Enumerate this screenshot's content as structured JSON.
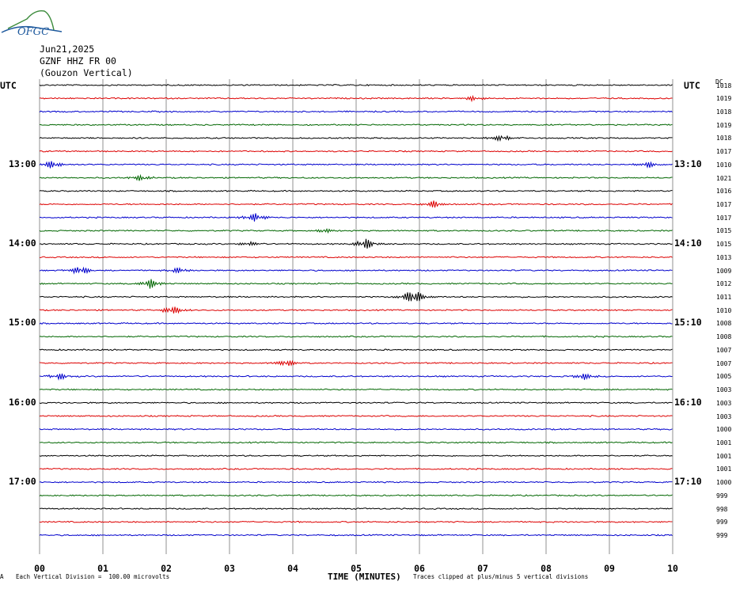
{
  "logo": {
    "text": "OFGC",
    "color": "#1f5a9e",
    "accent": "#3a8a3a"
  },
  "header": {
    "date": "Jun21,2025",
    "station": "GZNF HHZ FR 00",
    "location": "(Gouzon Vertical)"
  },
  "left_utc_label": "UTC",
  "right_utc_label": "UTC",
  "dc_header": "DC",
  "footer": {
    "vertical_division": "Each Vertical Division =  100.00 microvolts",
    "clip_note": "Traces clipped at plus/minus 5 vertical divisions",
    "corner_mark": "A"
  },
  "chart_data": {
    "type": "line",
    "xlabel": "TIME (MINUTES)",
    "xlim": [
      0,
      10
    ],
    "x_ticks": [
      "00",
      "01",
      "02",
      "03",
      "04",
      "05",
      "06",
      "07",
      "08",
      "09",
      "10"
    ],
    "grid": true,
    "trace_colors": [
      "#000000",
      "#dd0000",
      "#0000cc",
      "#006600"
    ],
    "left_hour_labels": [
      {
        "row": 6,
        "text": "13:00"
      },
      {
        "row": 12,
        "text": "14:00"
      },
      {
        "row": 18,
        "text": "15:00"
      },
      {
        "row": 24,
        "text": "16:00"
      },
      {
        "row": 30,
        "text": "17:00"
      }
    ],
    "right_hour_labels": [
      {
        "row": 6,
        "text": "13:10"
      },
      {
        "row": 12,
        "text": "14:10"
      },
      {
        "row": 18,
        "text": "15:10"
      },
      {
        "row": 24,
        "text": "16:10"
      },
      {
        "row": 30,
        "text": "17:10"
      }
    ],
    "dc_offsets": [
      1018,
      1019,
      1018,
      1019,
      1018,
      1017,
      1010,
      1021,
      1016,
      1017,
      1017,
      1015,
      1015,
      1013,
      1009,
      1012,
      1011,
      1010,
      1008,
      1008,
      1007,
      1007,
      1005,
      1003,
      1003,
      1003,
      1000,
      1001,
      1001,
      1001,
      1000,
      999,
      998,
      999,
      999
    ],
    "events": [
      {
        "row": 1,
        "minute": 6.85,
        "amplitude": 1.2
      },
      {
        "row": 4,
        "minute": 7.3,
        "amplitude": 1.6
      },
      {
        "row": 6,
        "minute": 0.2,
        "amplitude": 2.0
      },
      {
        "row": 6,
        "minute": 9.6,
        "amplitude": 1.4
      },
      {
        "row": 7,
        "minute": 1.6,
        "amplitude": 1.3
      },
      {
        "row": 9,
        "minute": 6.25,
        "amplitude": 1.8
      },
      {
        "row": 10,
        "minute": 3.4,
        "amplitude": 2.0
      },
      {
        "row": 11,
        "minute": 4.5,
        "amplitude": 1.0
      },
      {
        "row": 12,
        "minute": 5.15,
        "amplitude": 2.6
      },
      {
        "row": 12,
        "minute": 3.3,
        "amplitude": 1.2
      },
      {
        "row": 14,
        "minute": 0.65,
        "amplitude": 2.2
      },
      {
        "row": 14,
        "minute": 2.2,
        "amplitude": 1.2
      },
      {
        "row": 15,
        "minute": 1.75,
        "amplitude": 2.2
      },
      {
        "row": 16,
        "minute": 5.9,
        "amplitude": 4.0
      },
      {
        "row": 17,
        "minute": 2.1,
        "amplitude": 2.2
      },
      {
        "row": 21,
        "minute": 3.9,
        "amplitude": 1.8
      },
      {
        "row": 22,
        "minute": 0.3,
        "amplitude": 1.6
      },
      {
        "row": 22,
        "minute": 8.6,
        "amplitude": 1.4
      }
    ]
  }
}
